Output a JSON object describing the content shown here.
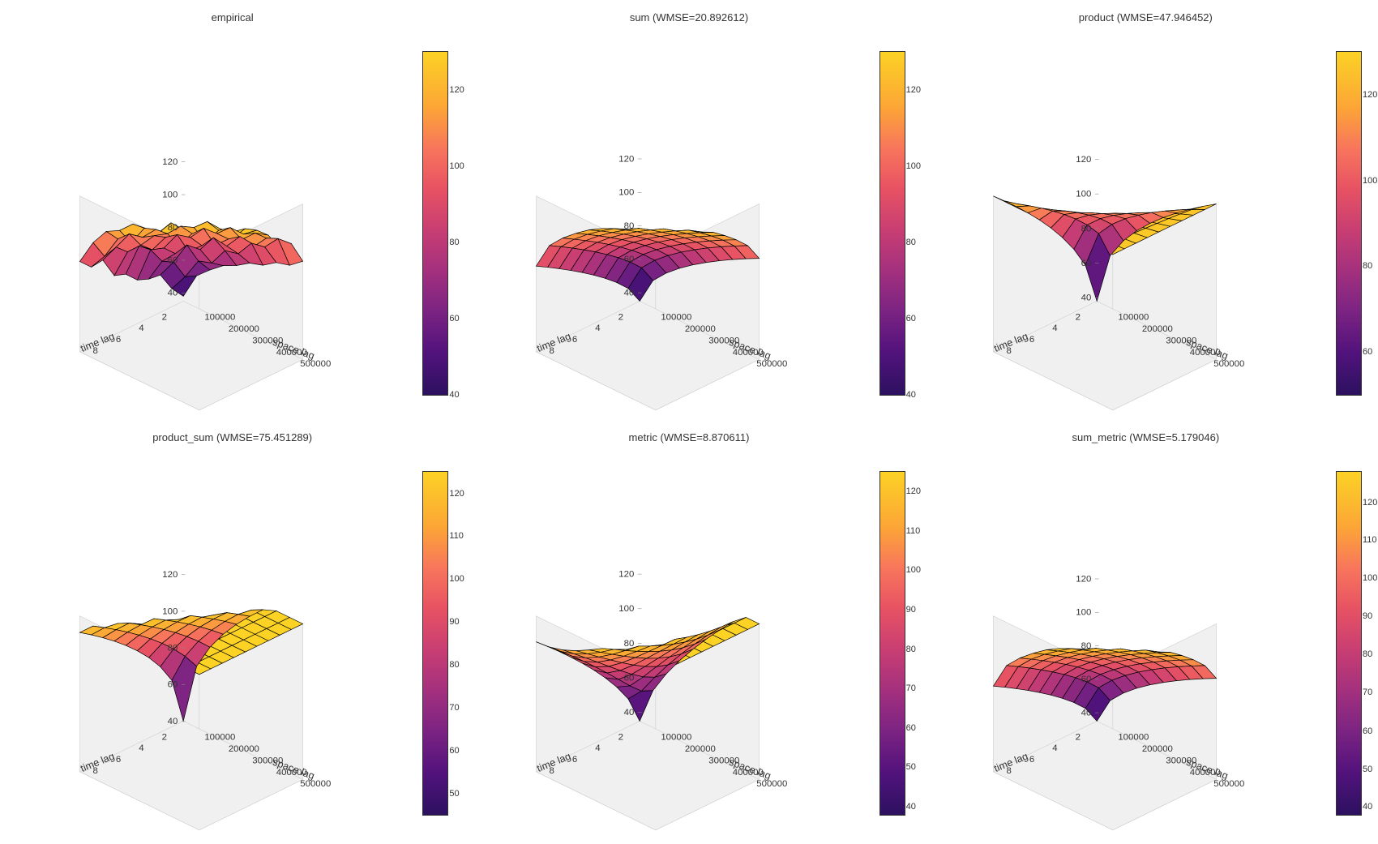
{
  "layout": {
    "rows": 2,
    "cols": 3,
    "background_color": "#ffffff",
    "panel_bg": "#f0f0f0"
  },
  "common_axes": {
    "xlabel": "time lag",
    "ylabel": "space lag",
    "x_ticks": [
      2,
      4,
      6,
      8
    ],
    "y_ticks": [
      100000,
      200000,
      300000,
      400000,
      500000
    ],
    "title_fontsize": 13,
    "label_fontsize": 11,
    "tick_fontsize": 10,
    "grid_color": "#d0d0d0",
    "mesh_edge_color": "#000000",
    "colormap": "viridis",
    "viridis_stops": [
      {
        "t": 0.0,
        "c": "#440154"
      },
      {
        "t": 0.1,
        "c": "#482475"
      },
      {
        "t": 0.2,
        "c": "#414487"
      },
      {
        "t": 0.3,
        "c": "#355f8d"
      },
      {
        "t": 0.4,
        "c": "#2a788e"
      },
      {
        "t": 0.5,
        "c": "#21918c"
      },
      {
        "t": 0.58,
        "c": "#22a884"
      },
      {
        "t": 0.66,
        "c": "#44bf70"
      },
      {
        "t": 0.74,
        "c": "#7ad151"
      },
      {
        "t": 0.82,
        "c": "#bddf26"
      },
      {
        "t": 0.9,
        "c": "#fde725"
      },
      {
        "t": 1.0,
        "c": "#fde725"
      }
    ],
    "plasma_stops": [
      {
        "t": 0.0,
        "c": "#2c115f"
      },
      {
        "t": 0.12,
        "c": "#51127c"
      },
      {
        "t": 0.24,
        "c": "#7a2382"
      },
      {
        "t": 0.36,
        "c": "#a3307e"
      },
      {
        "t": 0.48,
        "c": "#c83e73"
      },
      {
        "t": 0.6,
        "c": "#e75263"
      },
      {
        "t": 0.72,
        "c": "#f8765c"
      },
      {
        "t": 0.84,
        "c": "#fca636"
      },
      {
        "t": 1.0,
        "c": "#fcd225"
      }
    ]
  },
  "panels": [
    {
      "title": "empirical",
      "z_ticks": [
        40,
        60,
        80,
        100,
        120
      ],
      "cbar_ticks": [
        40,
        60,
        80,
        100,
        120
      ],
      "cbar_min": 40,
      "cbar_max": 130,
      "nx": 10,
      "ny": 10,
      "zmin": 35,
      "zmax": 130,
      "noise": 6,
      "surface_shape": "rising"
    },
    {
      "title": "sum (WMSE=20.892612)",
      "z_ticks": [
        40,
        60,
        80,
        100,
        120
      ],
      "cbar_ticks": [
        40,
        60,
        80,
        100,
        120
      ],
      "cbar_min": 40,
      "cbar_max": 130,
      "nx": 10,
      "ny": 10,
      "zmin": 35,
      "zmax": 128,
      "noise": 0,
      "surface_shape": "rising"
    },
    {
      "title": "product (WMSE=47.946452)",
      "z_ticks": [
        40,
        60,
        80,
        100,
        120
      ],
      "cbar_ticks": [
        60,
        80,
        100,
        120
      ],
      "cbar_min": 50,
      "cbar_max": 130,
      "nx": 10,
      "ny": 10,
      "zmin": 38,
      "zmax": 128,
      "noise": 0,
      "surface_shape": "product"
    },
    {
      "title": "product_sum (WMSE=75.451289)",
      "z_ticks": [
        40,
        60,
        80,
        100,
        120
      ],
      "cbar_ticks": [
        50,
        60,
        70,
        80,
        90,
        100,
        110,
        120
      ],
      "cbar_min": 45,
      "cbar_max": 125,
      "nx": 10,
      "ny": 10,
      "zmin": 40,
      "zmax": 125,
      "noise": 0,
      "surface_shape": "plateau"
    },
    {
      "title": "metric (WMSE=8.870611)",
      "z_ticks": [
        40,
        60,
        80,
        100,
        120
      ],
      "cbar_ticks": [
        40,
        50,
        60,
        70,
        80,
        90,
        100,
        110,
        120
      ],
      "cbar_min": 38,
      "cbar_max": 125,
      "nx": 10,
      "ny": 10,
      "zmin": 35,
      "zmax": 125,
      "noise": 0,
      "surface_shape": "metric"
    },
    {
      "title": "sum_metric (WMSE=5.179046)",
      "z_ticks": [
        40,
        60,
        80,
        100,
        120
      ],
      "cbar_ticks": [
        40,
        50,
        60,
        70,
        80,
        90,
        100,
        110,
        120
      ],
      "cbar_min": 38,
      "cbar_max": 128,
      "nx": 10,
      "ny": 10,
      "zmin": 35,
      "zmax": 128,
      "noise": 0,
      "surface_shape": "rising"
    }
  ]
}
